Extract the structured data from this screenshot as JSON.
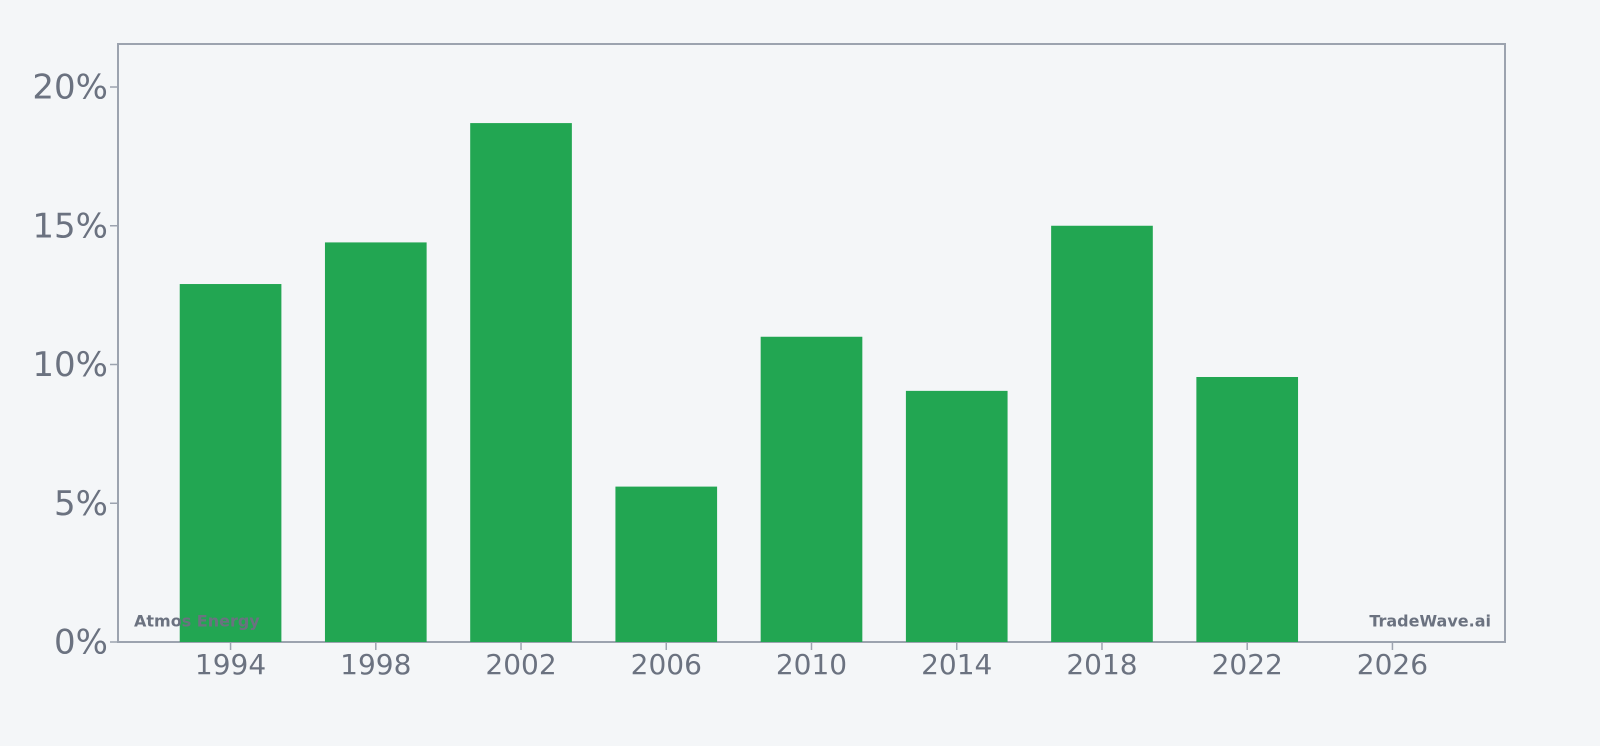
{
  "chart_data": {
    "type": "bar",
    "x": [
      1994,
      1998,
      2002,
      2006,
      2010,
      2014,
      2018,
      2022
    ],
    "values": [
      12.9,
      14.4,
      18.7,
      5.6,
      11.0,
      9.05,
      15.0,
      9.55
    ],
    "color": "#22a652",
    "xlim": [
      1990.9,
      2029.1
    ],
    "xticks": [
      1994,
      1998,
      2002,
      2006,
      2010,
      2014,
      2018,
      2022,
      2026
    ],
    "ylim": [
      0,
      21.55
    ],
    "yticks": [
      {
        "value": 0,
        "label": "0%"
      },
      {
        "value": 5,
        "label": "5%"
      },
      {
        "value": 10,
        "label": "10%"
      },
      {
        "value": 15,
        "label": "15%"
      },
      {
        "value": 20,
        "label": "20%"
      }
    ],
    "annotations": [
      "Atmos Energy",
      "TradeWave.ai"
    ]
  }
}
